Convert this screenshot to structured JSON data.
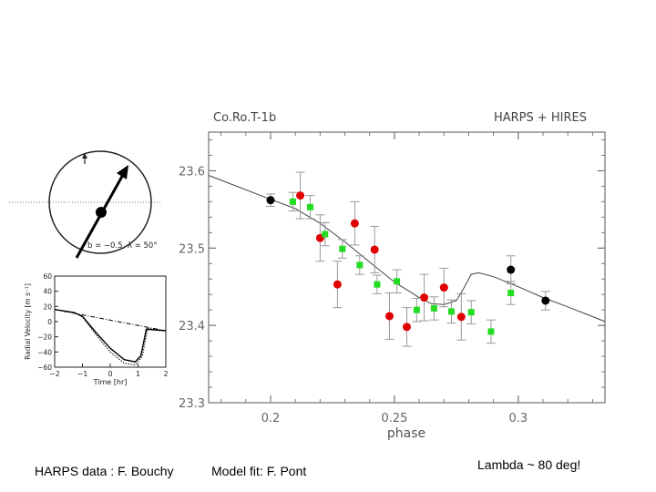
{
  "chart_data": [
    {
      "type": "scatter",
      "title_left": "Co.Ro.T-1b",
      "title_right": "HARPS + HIRES",
      "xlabel": "phase",
      "ylabel": "",
      "xlim": [
        0.175,
        0.335
      ],
      "ylim": [
        23.3,
        23.65
      ],
      "xticks": [
        "0.2",
        "0.25",
        "0.3"
      ],
      "yticks": [
        "23.3",
        "23.4",
        "23.5",
        "23.6"
      ],
      "grid": false,
      "series": [
        {
          "marker": "circle",
          "color": "#e00000",
          "points": [
            {
              "x": 0.212,
              "y": 23.568,
              "err": 0.03
            },
            {
              "x": 0.22,
              "y": 23.513,
              "err": 0.03
            },
            {
              "x": 0.227,
              "y": 23.453,
              "err": 0.03
            },
            {
              "x": 0.234,
              "y": 23.532,
              "err": 0.028
            },
            {
              "x": 0.242,
              "y": 23.498,
              "err": 0.03
            },
            {
              "x": 0.248,
              "y": 23.412,
              "err": 0.03
            },
            {
              "x": 0.255,
              "y": 23.398,
              "err": 0.025
            },
            {
              "x": 0.262,
              "y": 23.436,
              "err": 0.03
            },
            {
              "x": 0.27,
              "y": 23.449,
              "err": 0.025
            },
            {
              "x": 0.277,
              "y": 23.411,
              "err": 0.03
            }
          ]
        },
        {
          "marker": "square",
          "color": "#22dd22",
          "points": [
            {
              "x": 0.209,
              "y": 23.56,
              "err": 0.012
            },
            {
              "x": 0.216,
              "y": 23.553,
              "err": 0.015
            },
            {
              "x": 0.222,
              "y": 23.518,
              "err": 0.015
            },
            {
              "x": 0.229,
              "y": 23.499,
              "err": 0.012
            },
            {
              "x": 0.236,
              "y": 23.478,
              "err": 0.012
            },
            {
              "x": 0.243,
              "y": 23.453,
              "err": 0.012
            },
            {
              "x": 0.251,
              "y": 23.457,
              "err": 0.015
            },
            {
              "x": 0.259,
              "y": 23.42,
              "err": 0.015
            },
            {
              "x": 0.266,
              "y": 23.422,
              "err": 0.015
            },
            {
              "x": 0.273,
              "y": 23.418,
              "err": 0.015
            },
            {
              "x": 0.281,
              "y": 23.417,
              "err": 0.015
            },
            {
              "x": 0.289,
              "y": 23.392,
              "err": 0.015
            },
            {
              "x": 0.297,
              "y": 23.442,
              "err": 0.015
            }
          ]
        },
        {
          "marker": "circle",
          "color": "#000000",
          "points": [
            {
              "x": 0.2,
              "y": 23.562,
              "err": 0.008
            },
            {
              "x": 0.297,
              "y": 23.472,
              "err": 0.018
            },
            {
              "x": 0.311,
              "y": 23.432,
              "err": 0.012
            }
          ]
        }
      ],
      "model_curve": [
        [
          0.175,
          23.594
        ],
        [
          0.2,
          23.563
        ],
        [
          0.21,
          23.551
        ],
        [
          0.22,
          23.532
        ],
        [
          0.23,
          23.508
        ],
        [
          0.24,
          23.482
        ],
        [
          0.25,
          23.456
        ],
        [
          0.26,
          23.436
        ],
        [
          0.265,
          23.428
        ],
        [
          0.27,
          23.427
        ],
        [
          0.275,
          23.432
        ],
        [
          0.278,
          23.448
        ],
        [
          0.281,
          23.466
        ],
        [
          0.284,
          23.468
        ],
        [
          0.29,
          23.463
        ],
        [
          0.3,
          23.45
        ],
        [
          0.31,
          23.436
        ],
        [
          0.32,
          23.424
        ],
        [
          0.335,
          23.405
        ]
      ]
    },
    {
      "type": "line",
      "title": "",
      "xlabel": "Time [hr]",
      "ylabel": "Radial Velocity [m s⁻¹]",
      "xlim": [
        -2,
        2
      ],
      "ylim": [
        -60,
        60
      ],
      "xticks": [
        "−2",
        "−1",
        "0",
        "1",
        "2"
      ],
      "yticks": [
        "60",
        "40",
        "20",
        "0",
        "−20",
        "−40",
        "−60"
      ],
      "series": [
        {
          "style": "dashdot",
          "x": [
            -2,
            2
          ],
          "y": [
            16,
            -12
          ]
        },
        {
          "style": "solid",
          "x": [
            -2,
            -1.3,
            -1.0,
            -0.5,
            0,
            0.5,
            0.9,
            1.1,
            1.3,
            2
          ],
          "y": [
            16,
            12,
            7,
            -15,
            -35,
            -50,
            -53,
            -45,
            -10,
            -12
          ]
        },
        {
          "style": "dotted",
          "x": [
            -2,
            -1.3,
            -1.0,
            -0.5,
            0,
            0.5,
            0.9,
            1.15,
            1.35,
            2
          ],
          "y": [
            16,
            12,
            6,
            -18,
            -40,
            -55,
            -57,
            -46,
            -9,
            -12
          ]
        }
      ]
    }
  ],
  "diagram": {
    "label": "b = −0.5,  λ = 50°"
  },
  "captions": {
    "left": "HARPS data : F. Bouchy",
    "middle": "Model fit: F. Pont",
    "right": "Lambda ~ 80 deg!"
  }
}
